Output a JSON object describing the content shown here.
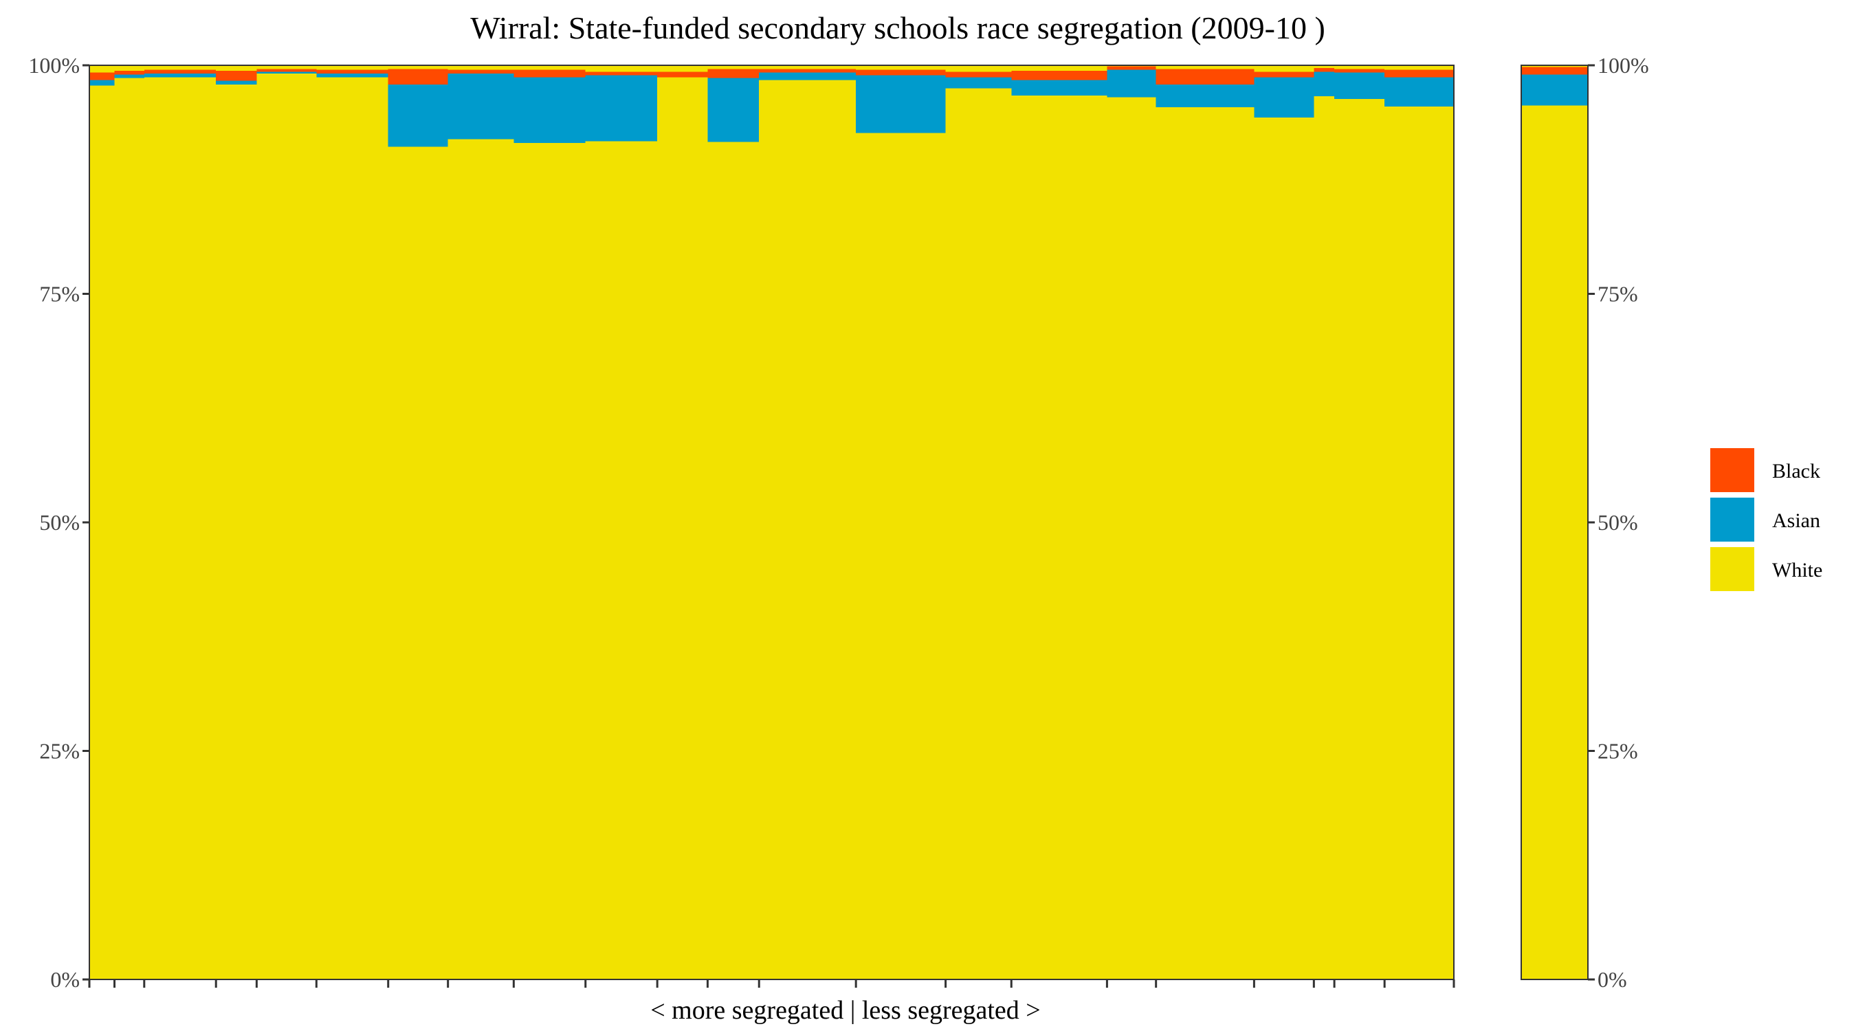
{
  "chart_data": {
    "type": "bar",
    "subtype": "stacked-proportional-variable-width",
    "title": "Wirral: State-funded secondary schools race segregation (2009-10 )",
    "xlabel": "< more segregated | less segregated >",
    "ylabel": "",
    "ylim": [
      0,
      1
    ],
    "y_ticks": [
      "0%",
      "25%",
      "50%",
      "75%",
      "100%"
    ],
    "y_tick_values": [
      0,
      0.25,
      0.5,
      0.75,
      1.0
    ],
    "x_domain": [
      0,
      1
    ],
    "grid": false,
    "legend_position": "right",
    "legend": [
      {
        "key": "black",
        "label": "Black"
      },
      {
        "key": "asian",
        "label": "Asian"
      },
      {
        "key": "white",
        "label": "White"
      }
    ],
    "colors": {
      "white": "#F2E200",
      "asian": "#009BCC",
      "black": "#FF4A00",
      "other": "#F2E200",
      "panel_border": "#333333"
    },
    "series_order": [
      "white",
      "asian",
      "black"
    ],
    "schools": [
      {
        "start": 0.0,
        "end": 0.0184,
        "white": 0.978,
        "asian": 0.006,
        "black": 0.008
      },
      {
        "start": 0.0184,
        "end": 0.0402,
        "white": 0.986,
        "asian": 0.004,
        "black": 0.004
      },
      {
        "start": 0.0402,
        "end": 0.0928,
        "white": 0.987,
        "asian": 0.004,
        "black": 0.004
      },
      {
        "start": 0.0928,
        "end": 0.1226,
        "white": 0.979,
        "asian": 0.004,
        "black": 0.011
      },
      {
        "start": 0.1226,
        "end": 0.1664,
        "white": 0.991,
        "asian": 0.002,
        "black": 0.003
      },
      {
        "start": 0.1664,
        "end": 0.219,
        "white": 0.987,
        "asian": 0.004,
        "black": 0.004
      },
      {
        "start": 0.219,
        "end": 0.2628,
        "white": 0.911,
        "asian": 0.068,
        "black": 0.017
      },
      {
        "start": 0.2628,
        "end": 0.311,
        "white": 0.919,
        "asian": 0.072,
        "black": 0.004
      },
      {
        "start": 0.311,
        "end": 0.3636,
        "white": 0.915,
        "asian": 0.072,
        "black": 0.008
      },
      {
        "start": 0.3636,
        "end": 0.4162,
        "white": 0.917,
        "asian": 0.072,
        "black": 0.004
      },
      {
        "start": 0.4162,
        "end": 0.4531,
        "white": 0.987,
        "asian": 0.0,
        "black": 0.006
      },
      {
        "start": 0.4531,
        "end": 0.4908,
        "white": 0.916,
        "asian": 0.07,
        "black": 0.01
      },
      {
        "start": 0.4908,
        "end": 0.5618,
        "white": 0.984,
        "asian": 0.008,
        "black": 0.004
      },
      {
        "start": 0.5618,
        "end": 0.6275,
        "white": 0.926,
        "asian": 0.063,
        "black": 0.006
      },
      {
        "start": 0.6275,
        "end": 0.6757,
        "white": 0.975,
        "asian": 0.012,
        "black": 0.006
      },
      {
        "start": 0.6757,
        "end": 0.7458,
        "white": 0.967,
        "asian": 0.017,
        "black": 0.01
      },
      {
        "start": 0.7458,
        "end": 0.7817,
        "white": 0.965,
        "asian": 0.03,
        "black": 0.004
      },
      {
        "start": 0.7817,
        "end": 0.8536,
        "white": 0.954,
        "asian": 0.025,
        "black": 0.017
      },
      {
        "start": 0.8536,
        "end": 0.8974,
        "white": 0.943,
        "asian": 0.044,
        "black": 0.006
      },
      {
        "start": 0.8974,
        "end": 0.9124,
        "white": 0.966,
        "asian": 0.027,
        "black": 0.004
      },
      {
        "start": 0.9124,
        "end": 0.9492,
        "white": 0.963,
        "asian": 0.029,
        "black": 0.004
      },
      {
        "start": 0.9492,
        "end": 1.0,
        "white": 0.955,
        "asian": 0.032,
        "black": 0.008
      }
    ],
    "overall": {
      "white": 0.956,
      "asian": 0.034,
      "black": 0.008
    }
  }
}
